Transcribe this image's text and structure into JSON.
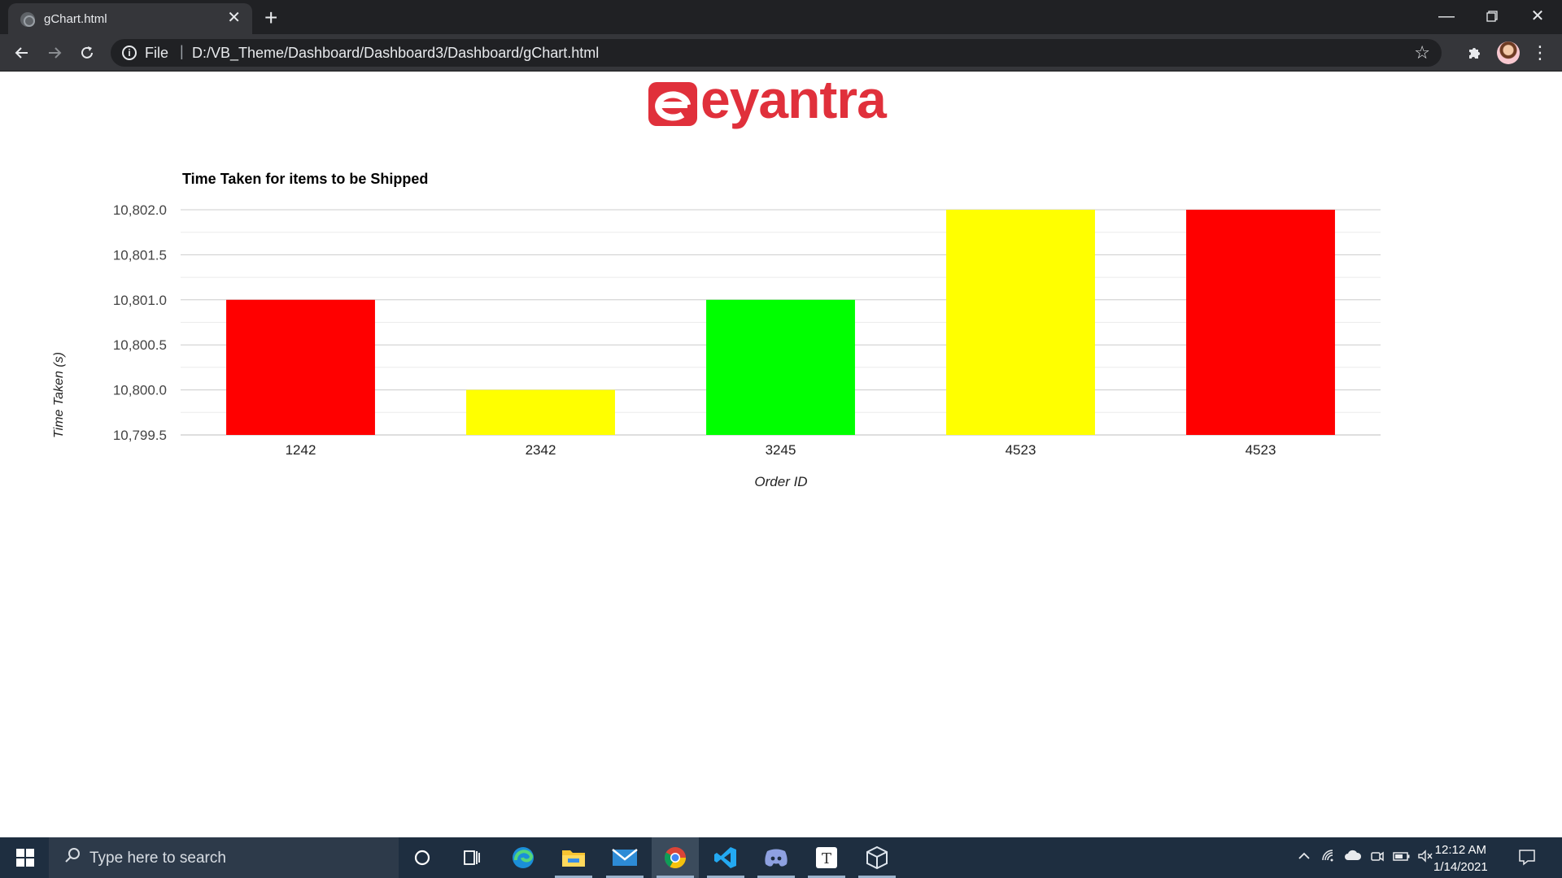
{
  "browser": {
    "tab_title": "gChart.html",
    "scheme_label": "File",
    "separator": "|",
    "url": "D:/VB_Theme/Dashboard/Dashboard3/Dashboard/gChart.html",
    "icons": {
      "back": "arrow-left-icon",
      "forward": "arrow-right-icon",
      "reload": "reload-icon",
      "info": "info-icon",
      "bookmark": "star-icon",
      "extensions": "puzzle-icon",
      "menu": "kebab-menu-icon"
    }
  },
  "page": {
    "logo_text": "eyantra",
    "logo_color": "#e0303b"
  },
  "chart_data": {
    "type": "bar",
    "title": "Time Taken for items to be Shipped",
    "xlabel": "Order ID",
    "ylabel": "Time Taken (s)",
    "categories": [
      "1242",
      "2342",
      "3245",
      "4523",
      "4523"
    ],
    "values": [
      10801.0,
      10800.0,
      10801.0,
      10802.0,
      10802.0
    ],
    "colors": [
      "#ff0000",
      "#ffff00",
      "#00ff00",
      "#ffff00",
      "#ff0000"
    ],
    "ylim": [
      10799.5,
      10802.0
    ],
    "yticks": [
      "10,799.5",
      "10,800.0",
      "10,800.5",
      "10,801.0",
      "10,801.5",
      "10,802.0"
    ],
    "grid": true,
    "legend": "none"
  },
  "taskbar": {
    "search_placeholder": "Type here to search",
    "time": "12:12 AM",
    "date": "1/14/2021",
    "apps": [
      "cortana-icon",
      "task-view-icon",
      "edge-icon",
      "file-explorer-icon",
      "mail-icon",
      "chrome-icon",
      "vscode-icon",
      "discord-icon",
      "typora-icon",
      "virtualbox-icon"
    ]
  }
}
